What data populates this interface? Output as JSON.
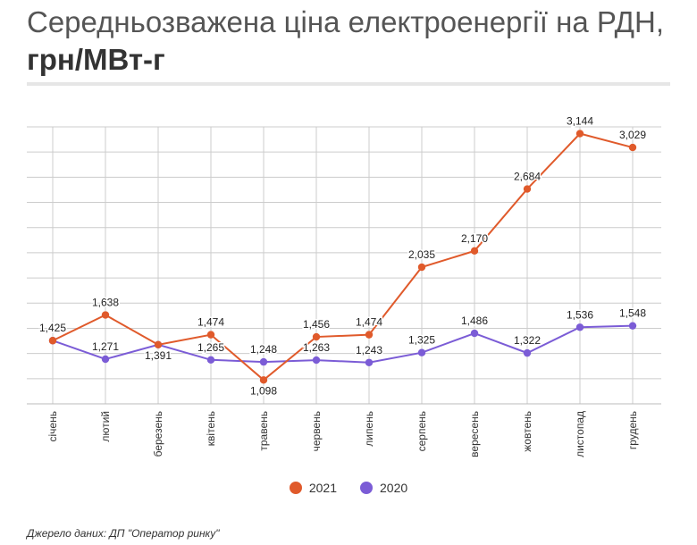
{
  "title": {
    "main": "Середньозважена ціна електроенергії на РДН,",
    "unit": "грн/МВт-г"
  },
  "source": "Джерело даних: ДП \"Оператор ринку\"",
  "chart_data": {
    "type": "line",
    "title": "Середньозважена ціна електроенергії на РДН, грн/МВт-г",
    "categories": [
      "січень",
      "лютий",
      "березень",
      "квітень",
      "травень",
      "червень",
      "липень",
      "серпень",
      "вересень",
      "жовтень",
      "листопад",
      "грудень"
    ],
    "series": [
      {
        "name": "2021",
        "color": "#e05a2b",
        "values": [
          1425,
          1638,
          1391,
          1474,
          1098,
          1456,
          1474,
          2035,
          2170,
          2684,
          3144,
          3029
        ],
        "labels": [
          "1,425",
          "1,638",
          "1,391",
          "1,474",
          "1,098",
          "1,456",
          "1,474",
          "2,035",
          "2,170",
          "2,684",
          "3,144",
          "3,029"
        ]
      },
      {
        "name": "2020",
        "color": "#7b5cd6",
        "values": [
          1425,
          1271,
          1391,
          1265,
          1248,
          1263,
          1243,
          1325,
          1486,
          1322,
          1536,
          1548
        ],
        "labels": [
          "",
          "1,271",
          "",
          "1,265",
          "1,248",
          "1,263",
          "1,243",
          "1,325",
          "1,486",
          "1,322",
          "1,536",
          "1,548"
        ]
      }
    ],
    "ylim": [
      900,
      3200
    ],
    "grid": true,
    "legend": "bottom"
  }
}
